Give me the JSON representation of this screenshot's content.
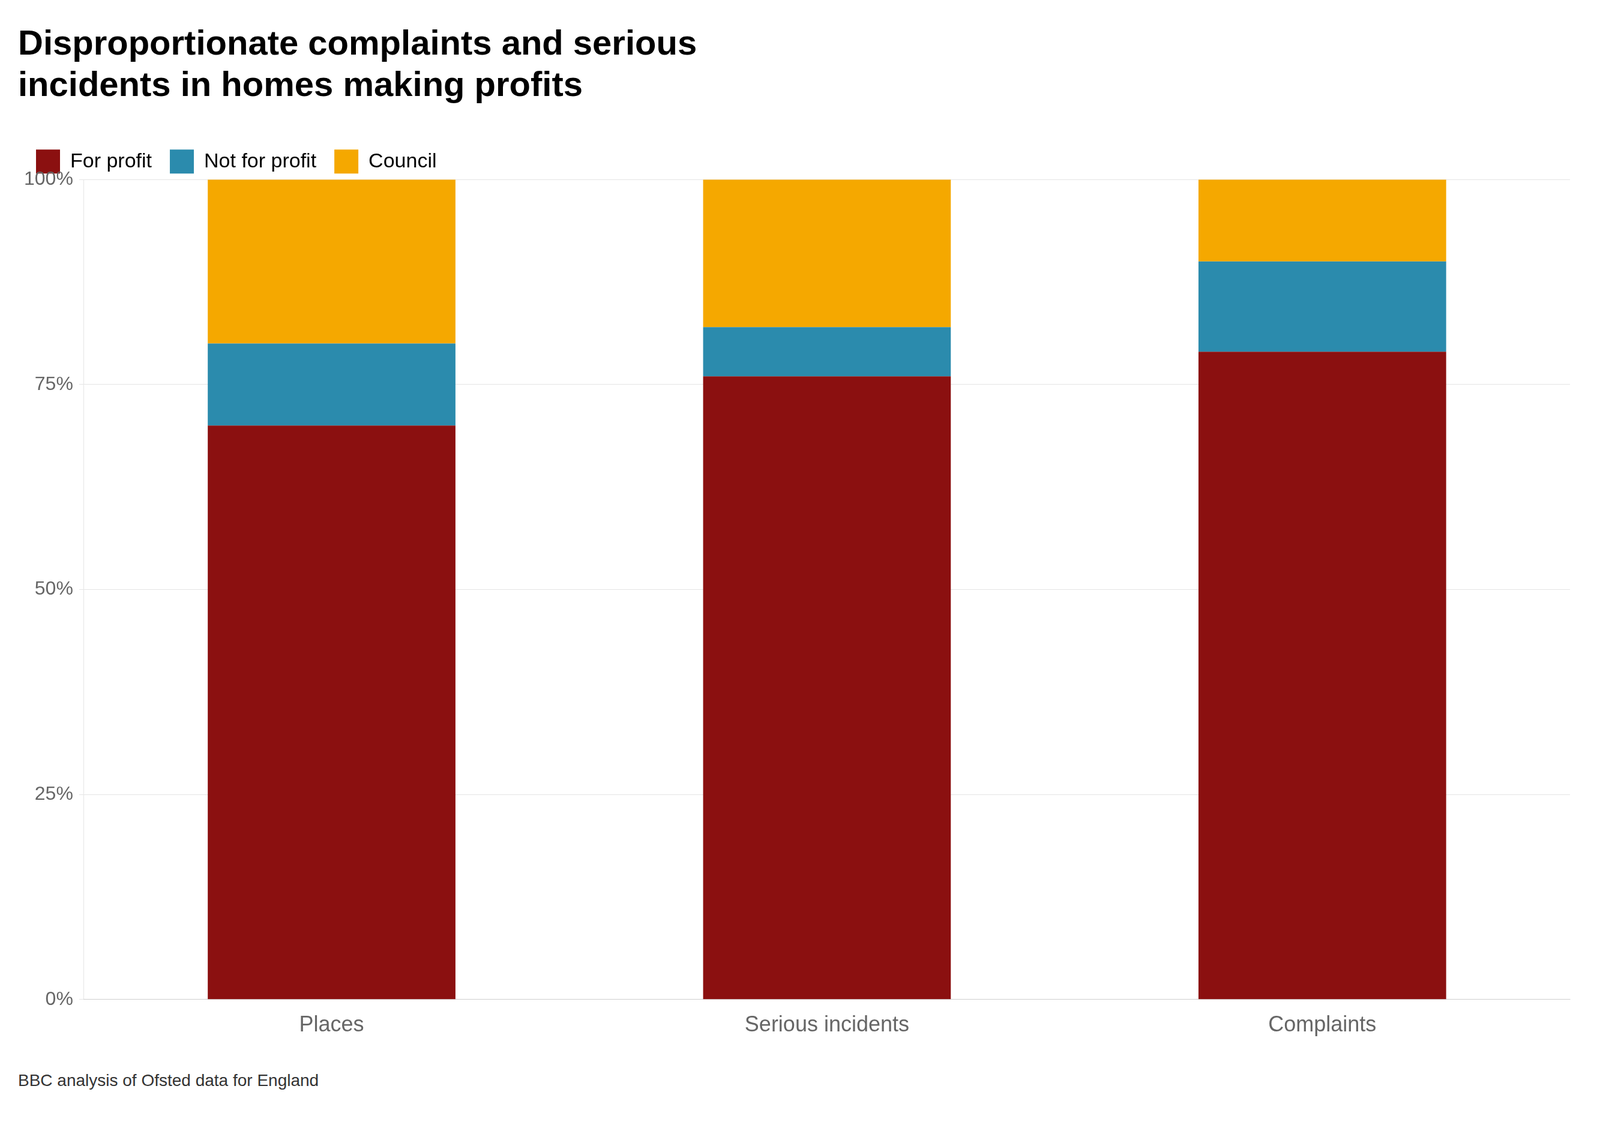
{
  "chart_data": {
    "type": "bar",
    "stacked": true,
    "title": [
      "Disproportionate complaints and serious",
      "incidents in homes making profits"
    ],
    "annotations": [
      "BBC analysis of Ofsted data for England"
    ],
    "categories": [
      "Places",
      "Serious incidents",
      "Complaints"
    ],
    "series": [
      {
        "name": "For profit",
        "color": "#8B1010",
        "values": [
          70,
          76,
          79
        ]
      },
      {
        "name": "Not for profit",
        "color": "#2B8BAD",
        "values": [
          10,
          6,
          11
        ]
      },
      {
        "name": "Council",
        "color": "#F5A800",
        "values": [
          20,
          18,
          10
        ]
      }
    ],
    "ylim": [
      0,
      100
    ],
    "yticks": [
      {
        "value": 0,
        "label": "0%"
      },
      {
        "value": 25,
        "label": "25%"
      },
      {
        "value": 50,
        "label": "50%"
      },
      {
        "value": 75,
        "label": "75%"
      },
      {
        "value": 100,
        "label": "100%"
      }
    ],
    "grid": true,
    "legend": "top"
  }
}
